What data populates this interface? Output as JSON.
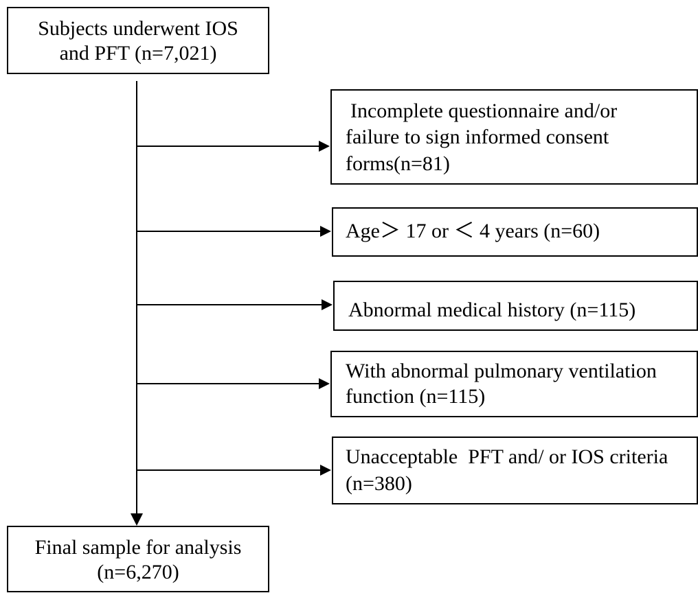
{
  "nodes": [
    {
      "lines": [
        "Subjects underwent IOS",
        "and PFT (n=7,021)"
      ]
    },
    {
      "lines": [
        "Incomplete questionnaire and/or",
        "failure to sign informed consent",
        "forms(n=81)"
      ]
    },
    {
      "lines": [
        "Age＞ 17 or ＜ 4 years (n=60)"
      ]
    },
    {
      "lines": [
        "Abnormal medical history (n=115)"
      ]
    },
    {
      "lines": [
        "With abnormal pulmonary ventilation",
        "function (n=115)"
      ]
    },
    {
      "lines": [
        "Unacceptable  PFT and/ or IOS criteria",
        "(n=380)"
      ]
    },
    {
      "lines": [
        "Final sample for analysis",
        "(n=6,270)"
      ]
    }
  ]
}
